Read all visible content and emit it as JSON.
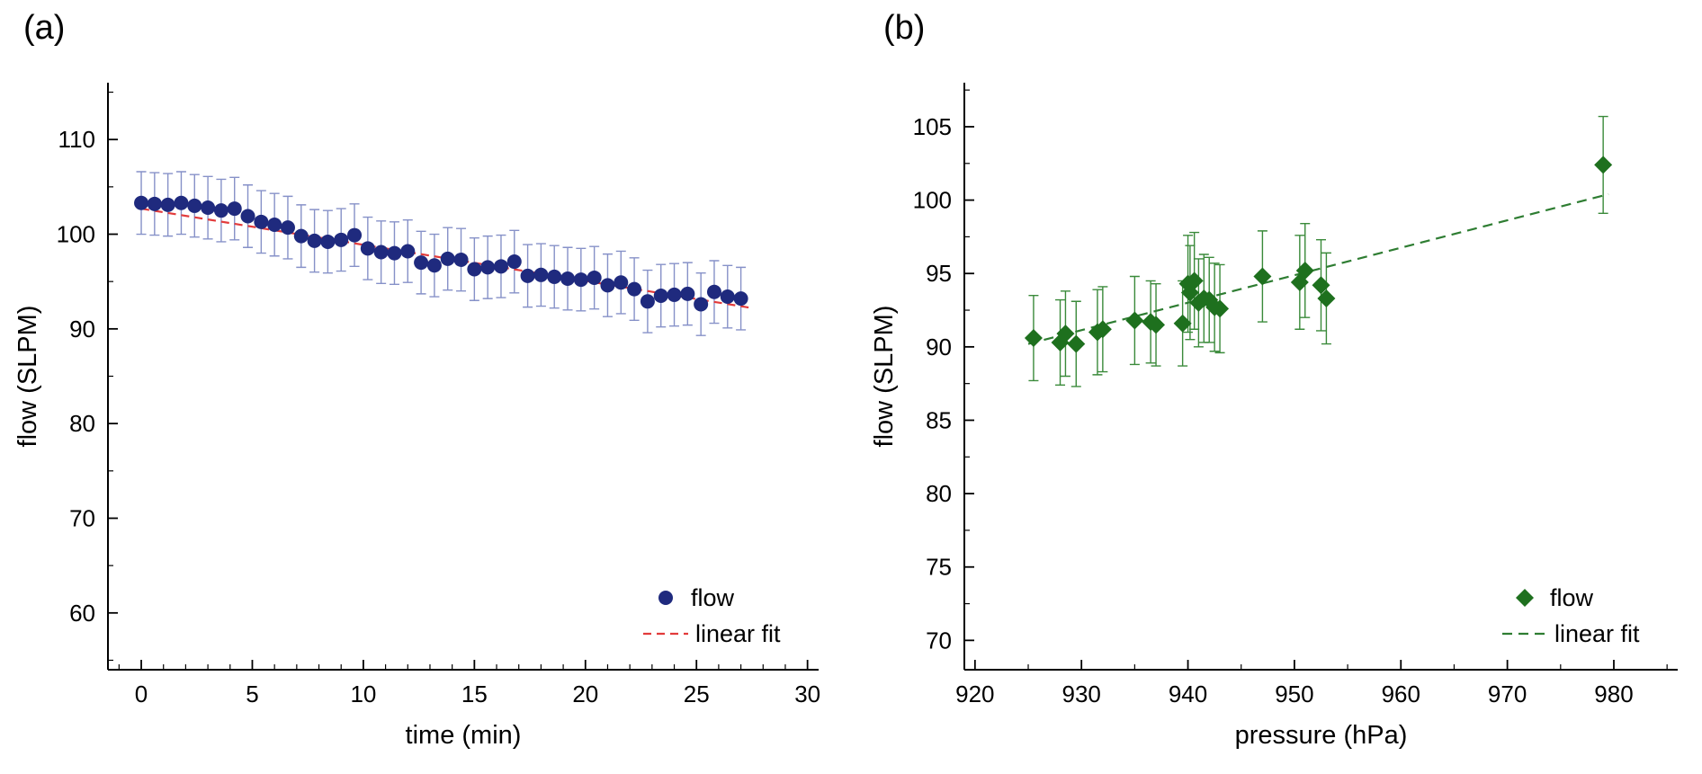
{
  "figure": {
    "background": "#ffffff"
  },
  "chart_data": [
    {
      "type": "scatter",
      "panel_label": "(a)",
      "title": "",
      "xlabel": "time (min)",
      "ylabel": "flow (SLPM)",
      "xlim": [
        -1.5,
        30.5
      ],
      "ylim": [
        54,
        116
      ],
      "xticks": [
        0,
        5,
        10,
        15,
        20,
        25,
        30
      ],
      "yticks": [
        60,
        70,
        80,
        90,
        100,
        110
      ],
      "x_minor_step": 1,
      "y_minor_step": 5,
      "grid": false,
      "legend": {
        "position": "bottom-right",
        "entries": [
          "flow",
          "linear fit"
        ]
      },
      "marker": "circle",
      "colors": {
        "marker": "#1f2a7e",
        "errorbar": "#8691c8",
        "fit": "#e23b3b",
        "axis": "#000000"
      },
      "series": [
        {
          "name": "flow",
          "x": [
            0,
            0.6,
            1.2,
            1.8,
            2.4,
            3.0,
            3.6,
            4.2,
            4.8,
            5.4,
            6.0,
            6.6,
            7.2,
            7.8,
            8.4,
            9.0,
            9.6,
            10.2,
            10.8,
            11.4,
            12.0,
            12.6,
            13.2,
            13.8,
            14.4,
            15.0,
            15.6,
            16.2,
            16.8,
            17.4,
            18.0,
            18.6,
            19.2,
            19.8,
            20.4,
            21.0,
            21.6,
            22.2,
            22.8,
            23.4,
            24.0,
            24.6,
            25.2,
            25.8,
            26.4,
            27.0
          ],
          "y": [
            103.3,
            103.2,
            103.1,
            103.3,
            103.0,
            102.8,
            102.5,
            102.7,
            101.9,
            101.3,
            101.0,
            100.7,
            99.8,
            99.3,
            99.2,
            99.4,
            99.9,
            98.5,
            98.1,
            98.0,
            98.2,
            97.0,
            96.7,
            97.4,
            97.3,
            96.3,
            96.5,
            96.6,
            97.1,
            95.6,
            95.7,
            95.5,
            95.3,
            95.2,
            95.4,
            94.6,
            94.9,
            94.2,
            92.9,
            93.5,
            93.6,
            93.7,
            92.6,
            93.9,
            93.4,
            93.2
          ],
          "yerr": 3.3
        }
      ],
      "fit": {
        "label": "linear fit",
        "x": [
          0,
          27.5
        ],
        "y": [
          102.7,
          92.2
        ],
        "dash": [
          9,
          6
        ]
      }
    },
    {
      "type": "scatter",
      "panel_label": "(b)",
      "title": "",
      "xlabel": "pressure (hPa)",
      "ylabel": "flow (SLPM)",
      "xlim": [
        919,
        986
      ],
      "ylim": [
        68,
        108
      ],
      "xticks": [
        920,
        930,
        940,
        950,
        960,
        970,
        980
      ],
      "yticks": [
        70,
        75,
        80,
        85,
        90,
        95,
        100,
        105
      ],
      "x_minor_step": 5,
      "y_minor_step": 2.5,
      "grid": false,
      "legend": {
        "position": "bottom-right",
        "entries": [
          "flow",
          "linear fit"
        ]
      },
      "marker": "diamond",
      "colors": {
        "marker": "#1e701e",
        "errorbar": "#3a8a3a",
        "fit": "#2e7d32",
        "axis": "#000000"
      },
      "series": [
        {
          "name": "flow",
          "x": [
            925.5,
            928.0,
            928.5,
            929.5,
            931.5,
            932.0,
            935.0,
            936.5,
            937.0,
            939.5,
            940.0,
            940.2,
            940.6,
            941.0,
            941.5,
            942.0,
            942.5,
            943.0,
            947.0,
            950.5,
            951.0,
            952.5,
            953.0,
            979.0
          ],
          "y": [
            90.6,
            90.3,
            90.9,
            90.2,
            91.0,
            91.2,
            91.8,
            91.7,
            91.5,
            91.6,
            94.3,
            93.7,
            94.5,
            93.0,
            93.3,
            93.2,
            92.7,
            92.6,
            94.8,
            94.4,
            95.2,
            94.2,
            93.3,
            102.4
          ],
          "yerr": [
            2.9,
            2.9,
            2.9,
            2.9,
            2.9,
            2.9,
            3.0,
            2.8,
            2.8,
            2.9,
            3.3,
            3.2,
            3.3,
            3.0,
            3.0,
            2.9,
            3.0,
            3.0,
            3.1,
            3.2,
            3.2,
            3.1,
            3.1,
            3.3
          ]
        }
      ],
      "fit": {
        "label": "linear fit",
        "x": [
          925,
          979.5
        ],
        "y": [
          90.2,
          100.4
        ],
        "dash": [
          11,
          7
        ]
      }
    }
  ]
}
